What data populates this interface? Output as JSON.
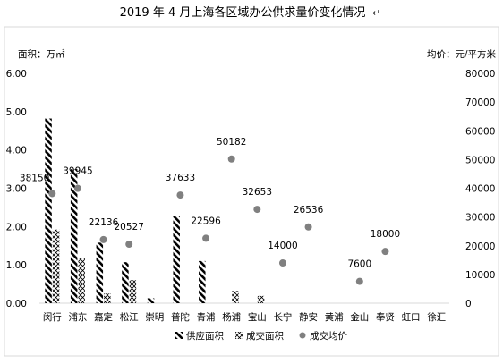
{
  "chart_data": {
    "type": "bar",
    "title": "2019 年 4 月上海各区域办公供求量价变化情况",
    "title_mark": "↵",
    "y_left_label": "面积：万㎡",
    "y_right_label": "均价：元/平方米",
    "ylim_left": [
      0,
      6
    ],
    "ylim_right": [
      0,
      80000
    ],
    "yticks_left": [
      "0.00",
      "1.00",
      "2.00",
      "3.00",
      "4.00",
      "5.00",
      "6.00"
    ],
    "yticks_right": [
      "0",
      "10000",
      "20000",
      "30000",
      "40000",
      "50000",
      "60000",
      "70000",
      "80000"
    ],
    "grid": false,
    "legend_position": "bottom",
    "categories": [
      "闵行",
      "浦东",
      "嘉定",
      "松江",
      "崇明",
      "普陀",
      "青浦",
      "杨浦",
      "宝山",
      "长宁",
      "静安",
      "黄浦",
      "金山",
      "奉贤",
      "虹口",
      "徐汇"
    ],
    "series": [
      {
        "name": "供应面积",
        "kind": "bar",
        "pattern": "diagonal-stripes",
        "values": [
          4.82,
          3.5,
          1.58,
          1.07,
          0.13,
          2.27,
          1.1,
          0,
          0,
          0,
          0,
          0,
          0,
          0,
          0,
          0
        ]
      },
      {
        "name": "成交面积",
        "kind": "bar",
        "pattern": "crosshatch",
        "values": [
          1.92,
          1.18,
          0.25,
          0.6,
          0,
          0,
          0,
          0.32,
          0.19,
          0,
          0,
          0,
          0,
          0,
          0,
          0
        ]
      },
      {
        "name": "成交均价",
        "kind": "scatter",
        "color": "#808080",
        "values": [
          38150,
          39945,
          22136,
          20527,
          null,
          37633,
          22596,
          50182,
          32653,
          14000,
          26536,
          null,
          7600,
          18000,
          null,
          null
        ],
        "labels": [
          "38150",
          "39945",
          "22136",
          "20527",
          "",
          "37633",
          "22596",
          "50182",
          "32653",
          "14000",
          "26536",
          "",
          "7600",
          "18000",
          "",
          ""
        ]
      }
    ]
  }
}
